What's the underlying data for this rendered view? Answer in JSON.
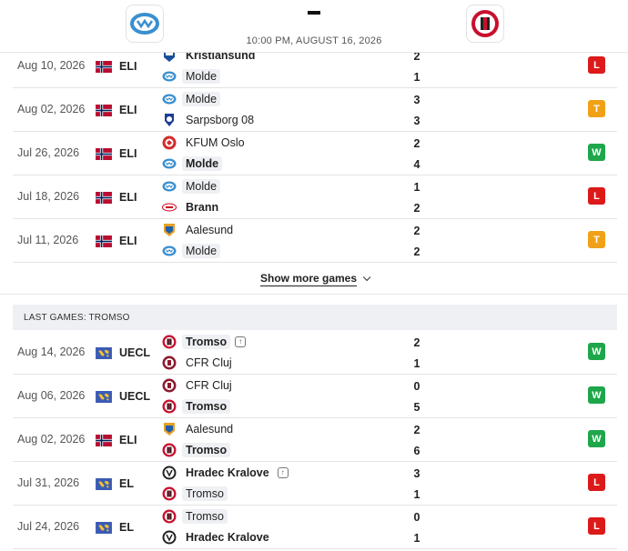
{
  "header": {
    "home_team": "Molde",
    "away_team": "Tromso",
    "score": "-",
    "datetime": "10:00 PM, AUGUST 16, 2026"
  },
  "colors": {
    "win": "#1ea64b",
    "loss": "#dc1a1a",
    "draw": "#f0a117",
    "norway_flag": "#ba0c2f"
  },
  "molde_games": [
    {
      "date": "Aug 10, 2026",
      "comp": "ELI",
      "flag": "norway-flag",
      "team1": "Kristiansund",
      "team2": "Molde",
      "score1": "2",
      "score2": "1",
      "result": "L",
      "result_type": "loss"
    },
    {
      "date": "Aug 02, 2026",
      "comp": "ELI",
      "flag": "norway-flag",
      "team1": "Molde",
      "team2": "Sarpsborg 08",
      "score1": "3",
      "score2": "3",
      "result": "T",
      "result_type": "draw"
    },
    {
      "date": "Jul 26, 2026",
      "comp": "ELI",
      "flag": "norway-flag",
      "team1": "KFUM Oslo",
      "team2": "Molde",
      "score1": "2",
      "score2": "4",
      "result": "W",
      "result_type": "win"
    },
    {
      "date": "Jul 18, 2026",
      "comp": "ELI",
      "flag": "norway-flag",
      "team1": "Molde",
      "team2": "Brann",
      "score1": "1",
      "score2": "2",
      "result": "L",
      "result_type": "loss"
    },
    {
      "date": "Jul 11, 2026",
      "comp": "ELI",
      "flag": "norway-flag",
      "team1": "Aalesund",
      "team2": "Molde",
      "score1": "2",
      "score2": "2",
      "result": "T",
      "result_type": "draw"
    }
  ],
  "show_more": "Show more games",
  "tromso_section_title": "LAST GAMES: TROMSO",
  "tromso_games": [
    {
      "date": "Aug 14, 2026",
      "comp": "UECL",
      "flag": "world-flag",
      "team1": "Tromso",
      "team2": "CFR Cluj",
      "score1": "2",
      "score2": "1",
      "result": "W",
      "result_type": "win"
    },
    {
      "date": "Aug 06, 2026",
      "comp": "UECL",
      "flag": "world-flag",
      "team1": "CFR Cluj",
      "team2": "Tromso",
      "score1": "0",
      "score2": "5",
      "result": "W",
      "result_type": "win"
    },
    {
      "date": "Aug 02, 2026",
      "comp": "ELI",
      "flag": "norway-flag",
      "team1": "Aalesund",
      "team2": "Tromso",
      "score1": "2",
      "score2": "6",
      "result": "W",
      "result_type": "win"
    },
    {
      "date": "Jul 31, 2026",
      "comp": "EL",
      "flag": "world-flag",
      "team1": "Hradec Kralove",
      "team2": "Tromso",
      "score1": "3",
      "score2": "1",
      "result": "L",
      "result_type": "loss"
    },
    {
      "date": "Jul 24, 2026",
      "comp": "EL",
      "flag": "world-flag",
      "team1": "Tromso",
      "team2": "Hradec Kralove",
      "score1": "0",
      "score2": "1",
      "result": "L",
      "result_type": "loss"
    }
  ]
}
